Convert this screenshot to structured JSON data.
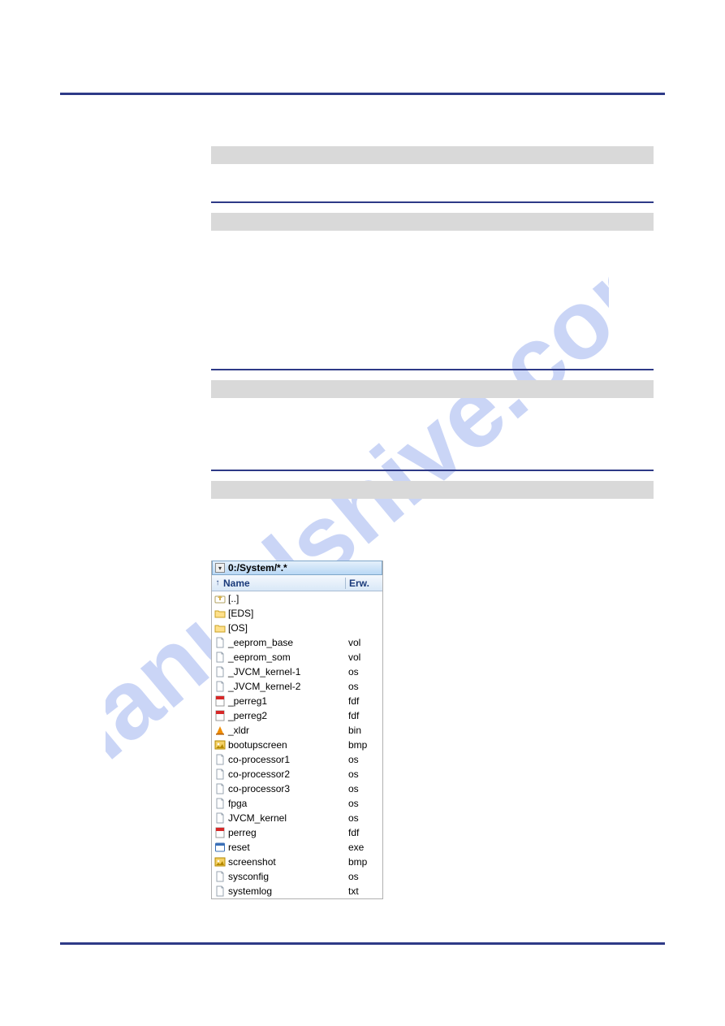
{
  "colors": {
    "rule": "#2e3a87",
    "graybar": "#d9d9d9",
    "header_grad_top": "#f4f8fd",
    "header_grad_bot": "#d9e8f7",
    "title_grad_top": "#e4f0fb",
    "title_grad_bot": "#b9d8f5",
    "watermark": "#6a8ae8"
  },
  "watermark_text": "manualshive.com",
  "file_panel": {
    "path": "0:/System/*.*",
    "header": {
      "sort_arrow": "↑",
      "col_name": "Name",
      "col_ext": "Erw."
    },
    "rows": [
      {
        "icon": "up",
        "name": "[..]",
        "ext": ""
      },
      {
        "icon": "folder",
        "name": "[EDS]",
        "ext": ""
      },
      {
        "icon": "folder",
        "name": "[OS]",
        "ext": ""
      },
      {
        "icon": "file",
        "name": "_eeprom_base",
        "ext": "vol"
      },
      {
        "icon": "file",
        "name": "_eeprom_som",
        "ext": "vol"
      },
      {
        "icon": "file",
        "name": "_JVCM_kernel-1",
        "ext": "os"
      },
      {
        "icon": "file",
        "name": "_JVCM_kernel-2",
        "ext": "os"
      },
      {
        "icon": "pdf",
        "name": "_perreg1",
        "ext": "fdf"
      },
      {
        "icon": "pdf",
        "name": "_perreg2",
        "ext": "fdf"
      },
      {
        "icon": "cone",
        "name": "_xldr",
        "ext": "bin"
      },
      {
        "icon": "image",
        "name": "bootupscreen",
        "ext": "bmp"
      },
      {
        "icon": "file",
        "name": "co-processor1",
        "ext": "os"
      },
      {
        "icon": "file",
        "name": "co-processor2",
        "ext": "os"
      },
      {
        "icon": "file",
        "name": "co-processor3",
        "ext": "os"
      },
      {
        "icon": "file",
        "name": "fpga",
        "ext": "os"
      },
      {
        "icon": "file",
        "name": "JVCM_kernel",
        "ext": "os"
      },
      {
        "icon": "pdf",
        "name": "perreg",
        "ext": "fdf"
      },
      {
        "icon": "exe",
        "name": "reset",
        "ext": "exe"
      },
      {
        "icon": "image",
        "name": "screenshot",
        "ext": "bmp"
      },
      {
        "icon": "file",
        "name": "sysconfig",
        "ext": "os"
      },
      {
        "icon": "file",
        "name": "systemlog",
        "ext": "txt"
      }
    ]
  }
}
